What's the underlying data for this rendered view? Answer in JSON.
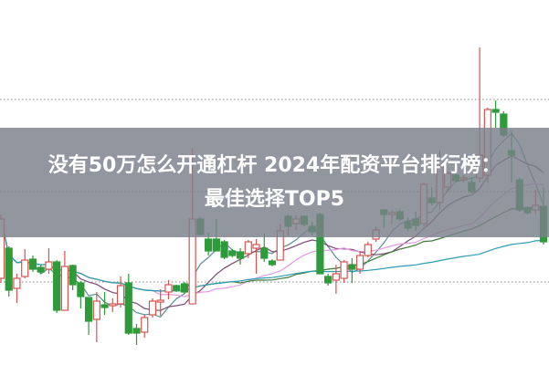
{
  "banner": {
    "line1": "没有50万怎么开通杠杆 2024年配资平台排行榜：",
    "line2": "最佳选择TOP5"
  },
  "chart_data": {
    "type": "candlestick",
    "title": "",
    "xlabel": "",
    "ylabel": "",
    "axes_visible": false,
    "grid": "dotted horizontal",
    "gridlines": [
      9.1,
      19.0,
      29.1
    ],
    "ylim": [
      0,
      40
    ],
    "up_color": "#d9534f",
    "down_color": "#2e9a3a",
    "moving_averages": [
      {
        "period": 5,
        "color": "#5b8d96"
      },
      {
        "period": 10,
        "color": "#7a4a70"
      },
      {
        "period": 20,
        "color": "#e59ae5"
      },
      {
        "period": 30,
        "color": "#3f7d3a"
      },
      {
        "period": 60,
        "color": "#2f9cb5"
      }
    ],
    "candles": [
      [
        9.5,
        16.5,
        9.0,
        16.0
      ],
      [
        12.8,
        13.0,
        7.5,
        8.2
      ],
      [
        8.4,
        10.0,
        6.8,
        9.5
      ],
      [
        9.7,
        12.7,
        9.5,
        11.5
      ],
      [
        11.6,
        12.0,
        10.2,
        10.5
      ],
      [
        10.7,
        11.0,
        10.0,
        10.2
      ],
      [
        10.5,
        12.8,
        10.0,
        11.3
      ],
      [
        11.3,
        11.5,
        5.7,
        6.0
      ],
      [
        6.0,
        12.5,
        6.0,
        10.8
      ],
      [
        10.9,
        11.0,
        8.2,
        8.8
      ],
      [
        9.0,
        9.2,
        6.2,
        7.5
      ],
      [
        7.4,
        7.4,
        3.3,
        4.8
      ],
      [
        5.0,
        8.0,
        2.5,
        7.0
      ],
      [
        6.6,
        8.0,
        5.5,
        6.3
      ],
      [
        6.5,
        7.3,
        5.8,
        6.7
      ],
      [
        6.7,
        9.7,
        6.3,
        8.7
      ],
      [
        9.0,
        10.0,
        3.3,
        3.5
      ],
      [
        4.0,
        4.5,
        2.2,
        3.5
      ],
      [
        3.6,
        5.5,
        3.0,
        5.2
      ],
      [
        5.5,
        7.3,
        5.2,
        7.0
      ],
      [
        6.9,
        8.3,
        5.4,
        7.1
      ],
      [
        8.0,
        9.3,
        7.2,
        8.8
      ],
      [
        8.7,
        8.8,
        8.0,
        8.2
      ],
      [
        8.9,
        9.1,
        7.8,
        8.0
      ],
      [
        6.7,
        23.7,
        6.7,
        16.0
      ],
      [
        16.0,
        16.2,
        14.2,
        14.3
      ],
      [
        13.8,
        14.5,
        12.0,
        12.5
      ],
      [
        13.8,
        16.0,
        12.5,
        12.5
      ],
      [
        13.5,
        13.7,
        11.6,
        11.8
      ],
      [
        12.5,
        12.7,
        11.8,
        12.0
      ],
      [
        12.4,
        12.8,
        11.0,
        11.7
      ],
      [
        12.2,
        13.7,
        11.7,
        13.5
      ],
      [
        12.8,
        13.8,
        10.0,
        13.2
      ],
      [
        12.8,
        14.4,
        11.3,
        11.7
      ],
      [
        11.4,
        11.6,
        10.8,
        11.0
      ],
      [
        11.5,
        15.5,
        11.5,
        14.7
      ],
      [
        16.3,
        16.5,
        14.2,
        15.2
      ],
      [
        15.5,
        16.4,
        14.8,
        16.0
      ],
      [
        16.3,
        16.4,
        15.2,
        15.4
      ],
      [
        15.2,
        15.7,
        14.2,
        14.6
      ],
      [
        16.5,
        16.7,
        10.0,
        10.0
      ],
      [
        9.7,
        10.0,
        8.7,
        9.0
      ],
      [
        9.3,
        11.0,
        7.8,
        10.0
      ],
      [
        9.5,
        11.5,
        9.0,
        11.3
      ],
      [
        11.0,
        11.7,
        9.0,
        10.5
      ],
      [
        10.5,
        12.5,
        10.0,
        12.0
      ],
      [
        12.0,
        13.5,
        11.8,
        13.2
      ],
      [
        13.8,
        15.2,
        13.5,
        14.8
      ],
      [
        17.0,
        17.0,
        15.0,
        16.5
      ],
      [
        16.5,
        17.0,
        15.5,
        16.7
      ],
      [
        16.8,
        17.0,
        15.8,
        16.0
      ],
      [
        15.7,
        16.2,
        14.7,
        15.0
      ],
      [
        16.0,
        16.8,
        14.7,
        15.3
      ],
      [
        15.5,
        20.0,
        15.2,
        19.8
      ],
      [
        18.3,
        19.5,
        17.5,
        17.8
      ],
      [
        17.8,
        23.5,
        17.0,
        21.7
      ],
      [
        19.5,
        21.2,
        19.0,
        21.0
      ],
      [
        20.8,
        21.0,
        20.0,
        20.2
      ],
      [
        20.3,
        20.8,
        20.0,
        20.5
      ],
      [
        20.0,
        20.5,
        18.8,
        19.0
      ],
      [
        20.5,
        34.8,
        20.0,
        23.0
      ],
      [
        20.8,
        28.2,
        20.0,
        28.0
      ],
      [
        28.0,
        29.0,
        26.0,
        27.7
      ],
      [
        27.5,
        27.8,
        25.0,
        25.2
      ],
      [
        23.5,
        25.7,
        20.0,
        23.0
      ],
      [
        20.3,
        20.5,
        16.8,
        17.0
      ],
      [
        17.2,
        17.4,
        16.5,
        16.7
      ],
      [
        17.0,
        19.2,
        16.5,
        17.5
      ],
      [
        17.4,
        19.5,
        13.2,
        13.5
      ]
    ]
  }
}
